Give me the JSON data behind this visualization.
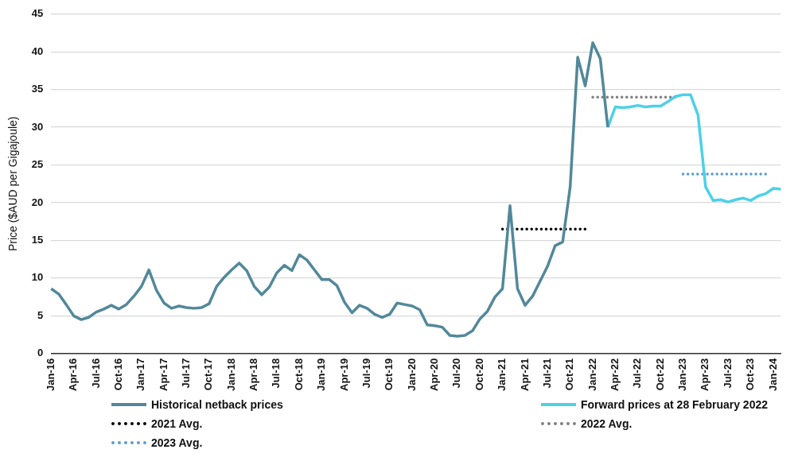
{
  "chart_data": {
    "type": "line",
    "ylabel": "Price ($AUD per Gigajoule)",
    "categories": [
      "Jan-16",
      null,
      null,
      "Apr-16",
      null,
      null,
      "Jul-16",
      null,
      null,
      "Oct-16",
      null,
      null,
      "Jan-17",
      null,
      null,
      "Apr-17",
      null,
      null,
      "Jul-17",
      null,
      null,
      "Oct-17",
      null,
      null,
      "Jan-18",
      null,
      null,
      "Apr-18",
      null,
      null,
      "Jul-18",
      null,
      null,
      "Oct-18",
      null,
      null,
      "Jan-19",
      null,
      null,
      "Apr-19",
      null,
      null,
      "Jul-19",
      null,
      null,
      "Oct-19",
      null,
      null,
      "Jan-20",
      null,
      null,
      "Apr-20",
      null,
      null,
      "Jul-20",
      null,
      null,
      "Oct-20",
      null,
      null,
      "Jan-21",
      null,
      null,
      "Apr-21",
      null,
      null,
      "Jul-21",
      null,
      null,
      "Oct-21",
      null,
      null,
      "Jan-22",
      null,
      null,
      "Apr-22",
      null,
      null,
      "Jul-22",
      null,
      null,
      "Oct-22",
      null,
      null,
      "Jan-23",
      null,
      null,
      "Apr-23",
      null,
      null,
      "Jul-23",
      null,
      null,
      "Oct-23",
      null,
      null,
      "Jan-24",
      null
    ],
    "series": [
      {
        "name": "Historical netback prices",
        "color": "#52889a",
        "line_style": "solid",
        "values": [
          8.6,
          7.9,
          6.5,
          5.0,
          4.5,
          4.8,
          5.5,
          5.9,
          6.4,
          5.9,
          6.5,
          7.6,
          8.9,
          11.1,
          8.4,
          6.7,
          6.0,
          6.3,
          6.1,
          6.0,
          6.1,
          6.6,
          8.9,
          10.1,
          11.1,
          12.0,
          11.0,
          8.9,
          7.8,
          8.8,
          10.7,
          11.7,
          11.0,
          13.1,
          12.4,
          11.1,
          9.8,
          9.8,
          9.0,
          6.8,
          5.4,
          6.4,
          6.0,
          5.2,
          4.8,
          5.2,
          6.7,
          6.5,
          6.3,
          5.8,
          3.8,
          3.7,
          3.5,
          2.4,
          2.3,
          2.4,
          3.0,
          4.6,
          5.6,
          7.5,
          8.6,
          19.6,
          8.6,
          6.4,
          7.6,
          9.6,
          11.6,
          14.3,
          14.8,
          22.1,
          39.3,
          35.5,
          41.2,
          39.1,
          30.0,
          null,
          null,
          null,
          null,
          null,
          null,
          null,
          null,
          null,
          null,
          null,
          null,
          null,
          null,
          null,
          null,
          null,
          null,
          null,
          null,
          null,
          null,
          null
        ]
      },
      {
        "name": "Forward prices at 28 February 2022",
        "color": "#4dd0e8",
        "line_style": "solid",
        "values": [
          null,
          null,
          null,
          null,
          null,
          null,
          null,
          null,
          null,
          null,
          null,
          null,
          null,
          null,
          null,
          null,
          null,
          null,
          null,
          null,
          null,
          null,
          null,
          null,
          null,
          null,
          null,
          null,
          null,
          null,
          null,
          null,
          null,
          null,
          null,
          null,
          null,
          null,
          null,
          null,
          null,
          null,
          null,
          null,
          null,
          null,
          null,
          null,
          null,
          null,
          null,
          null,
          null,
          null,
          null,
          null,
          null,
          null,
          null,
          null,
          null,
          null,
          null,
          null,
          null,
          null,
          null,
          null,
          null,
          null,
          null,
          null,
          null,
          null,
          30.0,
          32.7,
          32.6,
          32.7,
          32.9,
          32.7,
          32.8,
          32.8,
          33.4,
          34.1,
          34.3,
          34.3,
          31.6,
          22.1,
          20.3,
          20.4,
          20.1,
          20.4,
          20.6,
          20.3,
          20.9,
          21.2,
          21.9,
          21.8
        ]
      },
      {
        "name": "2021 Avg.",
        "color": "#000000",
        "line_style": "dotted",
        "values": [
          null,
          null,
          null,
          null,
          null,
          null,
          null,
          null,
          null,
          null,
          null,
          null,
          null,
          null,
          null,
          null,
          null,
          null,
          null,
          null,
          null,
          null,
          null,
          null,
          null,
          null,
          null,
          null,
          null,
          null,
          null,
          null,
          null,
          null,
          null,
          null,
          null,
          null,
          null,
          null,
          null,
          null,
          null,
          null,
          null,
          null,
          null,
          null,
          null,
          null,
          null,
          null,
          null,
          null,
          null,
          null,
          null,
          null,
          null,
          null,
          16.5,
          16.5,
          16.5,
          16.5,
          16.5,
          16.5,
          16.5,
          16.5,
          16.5,
          16.5,
          16.5,
          16.5,
          null,
          null,
          null,
          null,
          null,
          null,
          null,
          null,
          null,
          null,
          null,
          null,
          null,
          null,
          null,
          null,
          null,
          null,
          null,
          null,
          null,
          null,
          null,
          null,
          null,
          null
        ]
      },
      {
        "name": "2022 Avg.",
        "color": "#7f7f7f",
        "line_style": "dotted",
        "values": [
          null,
          null,
          null,
          null,
          null,
          null,
          null,
          null,
          null,
          null,
          null,
          null,
          null,
          null,
          null,
          null,
          null,
          null,
          null,
          null,
          null,
          null,
          null,
          null,
          null,
          null,
          null,
          null,
          null,
          null,
          null,
          null,
          null,
          null,
          null,
          null,
          null,
          null,
          null,
          null,
          null,
          null,
          null,
          null,
          null,
          null,
          null,
          null,
          null,
          null,
          null,
          null,
          null,
          null,
          null,
          null,
          null,
          null,
          null,
          null,
          null,
          null,
          null,
          null,
          null,
          null,
          null,
          null,
          null,
          null,
          null,
          null,
          34.0,
          34.0,
          34.0,
          34.0,
          34.0,
          34.0,
          34.0,
          34.0,
          34.0,
          34.0,
          34.0,
          34.0,
          null,
          null,
          null,
          null,
          null,
          null,
          null,
          null,
          null,
          null,
          null,
          null,
          null,
          null
        ]
      },
      {
        "name": "2023 Avg.",
        "color": "#5b9bd5",
        "line_style": "dotted",
        "values": [
          null,
          null,
          null,
          null,
          null,
          null,
          null,
          null,
          null,
          null,
          null,
          null,
          null,
          null,
          null,
          null,
          null,
          null,
          null,
          null,
          null,
          null,
          null,
          null,
          null,
          null,
          null,
          null,
          null,
          null,
          null,
          null,
          null,
          null,
          null,
          null,
          null,
          null,
          null,
          null,
          null,
          null,
          null,
          null,
          null,
          null,
          null,
          null,
          null,
          null,
          null,
          null,
          null,
          null,
          null,
          null,
          null,
          null,
          null,
          null,
          null,
          null,
          null,
          null,
          null,
          null,
          null,
          null,
          null,
          null,
          null,
          null,
          null,
          null,
          null,
          null,
          null,
          null,
          null,
          null,
          null,
          null,
          null,
          null,
          23.8,
          23.8,
          23.8,
          23.8,
          23.8,
          23.8,
          23.8,
          23.8,
          23.8,
          23.8,
          23.8,
          23.8,
          null,
          null
        ]
      }
    ],
    "ylim": [
      0,
      45
    ],
    "yticks": [
      0,
      5,
      10,
      15,
      20,
      25,
      30,
      35,
      40,
      45
    ],
    "grid": "y",
    "legend": "bottom",
    "marker": "none"
  }
}
